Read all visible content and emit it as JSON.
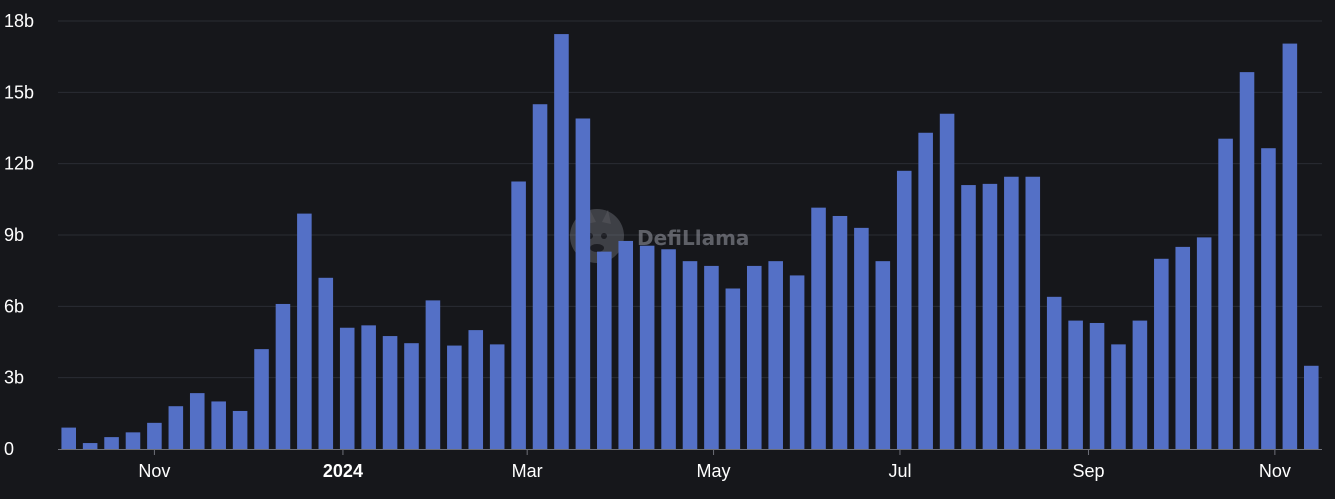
{
  "watermark": "DefiLlama",
  "chart_data": {
    "type": "bar",
    "title": "",
    "xlabel": "",
    "ylabel": "",
    "ylim": [
      0,
      18
    ],
    "y_unit": "b",
    "y_ticks": [
      0,
      3,
      6,
      9,
      12,
      15,
      18
    ],
    "y_tick_labels": [
      "0",
      "3b",
      "6b",
      "9b",
      "12b",
      "15b",
      "18b"
    ],
    "grid": true,
    "colors": {
      "background": "#16171b",
      "bar": "#5470c6",
      "grid": "#2a2c33",
      "axis_text": "#ffffff"
    },
    "x_tick_labels": [
      {
        "label": "Nov",
        "bar_index": 4.5,
        "bold": false
      },
      {
        "label": "2024",
        "bar_index": 13.3,
        "bold": true
      },
      {
        "label": "Mar",
        "bar_index": 21.9,
        "bold": false
      },
      {
        "label": "May",
        "bar_index": 30.6,
        "bold": false
      },
      {
        "label": "Jul",
        "bar_index": 39.3,
        "bold": false
      },
      {
        "label": "Sep",
        "bar_index": 48.1,
        "bold": false
      },
      {
        "label": "Nov",
        "bar_index": 56.8,
        "bold": false
      }
    ],
    "values": [
      0.9,
      0.25,
      0.5,
      0.7,
      1.1,
      1.8,
      2.35,
      2.0,
      1.6,
      4.2,
      6.1,
      9.9,
      7.2,
      5.1,
      5.2,
      4.75,
      4.45,
      6.25,
      4.35,
      5.0,
      4.4,
      11.25,
      14.5,
      17.45,
      13.9,
      8.3,
      8.75,
      8.55,
      8.4,
      7.9,
      7.7,
      6.75,
      7.7,
      7.9,
      7.3,
      10.15,
      9.8,
      9.3,
      7.9,
      11.7,
      13.3,
      14.1,
      11.1,
      11.15,
      11.45,
      11.45,
      6.4,
      5.4,
      5.3,
      4.4,
      5.4,
      8.0,
      8.5,
      8.9,
      13.05,
      15.85,
      12.65,
      17.05,
      3.5
    ]
  }
}
